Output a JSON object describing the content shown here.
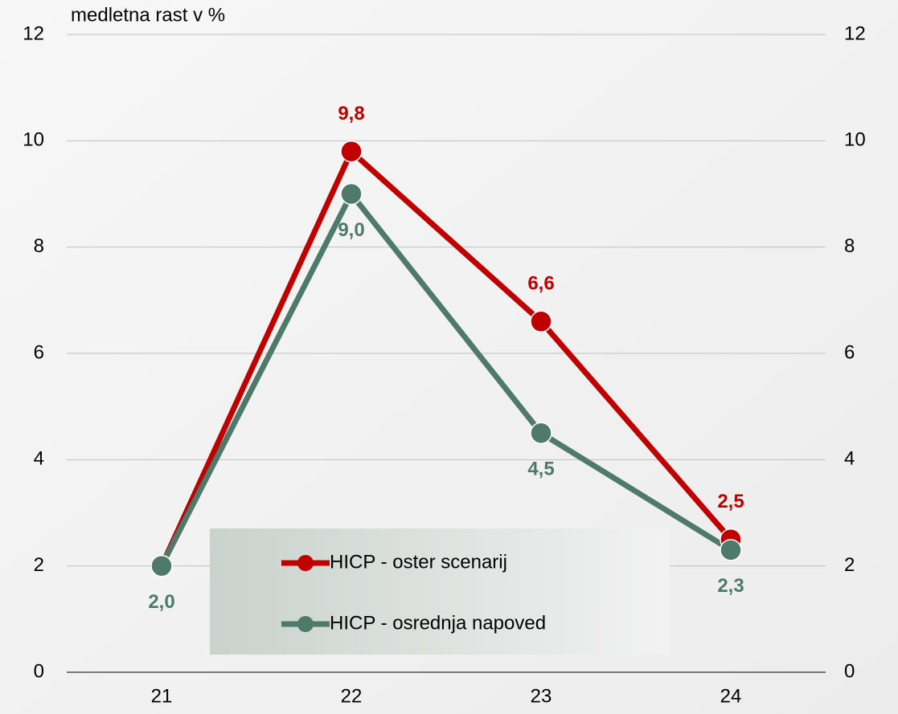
{
  "chart_data": {
    "type": "line",
    "y_label": "medletna rast v %",
    "categories": [
      "21",
      "22",
      "23",
      "24"
    ],
    "series": [
      {
        "name": "HICP - oster scenarij",
        "color": "#c00000",
        "values": [
          2.0,
          9.8,
          6.6,
          2.5
        ],
        "value_labels": [
          null,
          "9,8",
          "6,6",
          "2,5"
        ],
        "label_position": "above"
      },
      {
        "name": "HICP - osrednja napoved",
        "color": "#4f7a6b",
        "values": [
          2.0,
          9.0,
          4.5,
          2.3
        ],
        "value_labels": [
          "2,0",
          "9,0",
          "4,5",
          "2,3"
        ],
        "label_position": "below"
      }
    ],
    "ylim": [
      0,
      12
    ],
    "yticks": [
      0,
      2,
      4,
      6,
      8,
      10,
      12
    ],
    "y2lim": [
      0,
      12
    ],
    "y2ticks": [
      0,
      2,
      4,
      6,
      8,
      10,
      12
    ],
    "grid": true
  }
}
